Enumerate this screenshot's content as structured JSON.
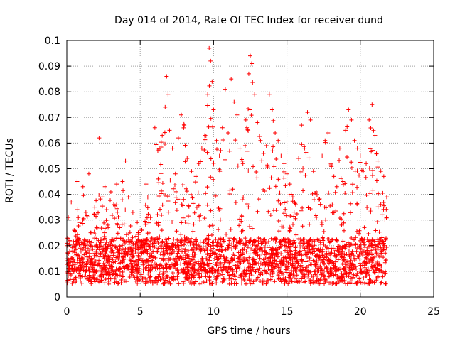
{
  "chart_data": {
    "type": "scatter",
    "title": "Day 014 of 2014, Rate Of TEC Index for receiver dund",
    "xlabel": "GPS time / hours",
    "ylabel": "ROTI / TECUs",
    "xlim": [
      0,
      25
    ],
    "ylim": [
      0,
      0.1
    ],
    "xticks": [
      0,
      5,
      10,
      15,
      20,
      25
    ],
    "xtick_labels": [
      "0",
      "5",
      "10",
      "15",
      "20",
      "25"
    ],
    "yticks": [
      0,
      0.01,
      0.02,
      0.03,
      0.04,
      0.05,
      0.06,
      0.07,
      0.08,
      0.09,
      0.1
    ],
    "ytick_labels": [
      "0",
      "0.01",
      "0.02",
      "0.03",
      "0.04",
      "0.05",
      "0.06",
      "0.07",
      "0.08",
      "0.09",
      "0.1"
    ],
    "grid": true,
    "marker": "+",
    "series": [
      {
        "name": "ROTI",
        "color": "#ff0000",
        "x": [
          0.1,
          0.2,
          0.3,
          0.5,
          0.7,
          0.9,
          1.1,
          1.3,
          1.5,
          1.7,
          1.9,
          2.2,
          2.4,
          2.6,
          2.8,
          3.0,
          3.2,
          3.4,
          3.6,
          3.8,
          4.0,
          4.2,
          4.5,
          4.8,
          5.1,
          5.4,
          5.7,
          6.0,
          6.2,
          6.5,
          6.7,
          6.8,
          6.9,
          7.0,
          7.2,
          7.4,
          7.6,
          7.8,
          8.0,
          8.2,
          8.5,
          8.8,
          9.0,
          9.2,
          9.4,
          9.6,
          9.7,
          9.8,
          9.9,
          10.0,
          10.2,
          10.4,
          10.6,
          10.8,
          11.0,
          11.2,
          11.4,
          11.6,
          11.8,
          12.0,
          12.2,
          12.4,
          12.5,
          12.6,
          12.8,
          13.0,
          13.2,
          13.4,
          13.6,
          13.8,
          14.0,
          14.2,
          14.4,
          14.6,
          14.8,
          15.0,
          15.2,
          15.4,
          15.6,
          15.8,
          16.0,
          16.2,
          16.4,
          16.6,
          16.8,
          17.0,
          17.2,
          17.4,
          17.6,
          17.8,
          18.0,
          18.2,
          18.4,
          18.6,
          18.8,
          19.0,
          19.2,
          19.4,
          19.6,
          19.8,
          20.0,
          20.2,
          20.4,
          20.6,
          20.8,
          21.0,
          21.2,
          21.4,
          21.6,
          21.8
        ],
        "y": [
          0.031,
          0.022,
          0.037,
          0.026,
          0.045,
          0.029,
          0.043,
          0.033,
          0.048,
          0.025,
          0.035,
          0.062,
          0.039,
          0.043,
          0.028,
          0.041,
          0.036,
          0.044,
          0.027,
          0.045,
          0.053,
          0.039,
          0.033,
          0.029,
          0.026,
          0.044,
          0.031,
          0.066,
          0.057,
          0.063,
          0.074,
          0.086,
          0.079,
          0.065,
          0.058,
          0.048,
          0.062,
          0.071,
          0.067,
          0.054,
          0.049,
          0.047,
          0.052,
          0.058,
          0.063,
          0.079,
          0.097,
          0.092,
          0.084,
          0.073,
          0.061,
          0.055,
          0.066,
          0.081,
          0.064,
          0.085,
          0.076,
          0.071,
          0.058,
          0.052,
          0.069,
          0.087,
          0.094,
          0.091,
          0.079,
          0.068,
          0.061,
          0.056,
          0.059,
          0.079,
          0.073,
          0.064,
          0.061,
          0.055,
          0.052,
          0.048,
          0.044,
          0.039,
          0.036,
          0.054,
          0.067,
          0.058,
          0.072,
          0.069,
          0.049,
          0.041,
          0.038,
          0.055,
          0.061,
          0.064,
          0.052,
          0.047,
          0.043,
          0.058,
          0.045,
          0.065,
          0.073,
          0.069,
          0.061,
          0.058,
          0.055,
          0.049,
          0.052,
          0.069,
          0.075,
          0.063,
          0.053,
          0.049,
          0.047,
          0.039
        ]
      }
    ],
    "cloud_note": "dense band of measurements between 0.003 and 0.025 spanning 0 to 21.8 hours"
  }
}
